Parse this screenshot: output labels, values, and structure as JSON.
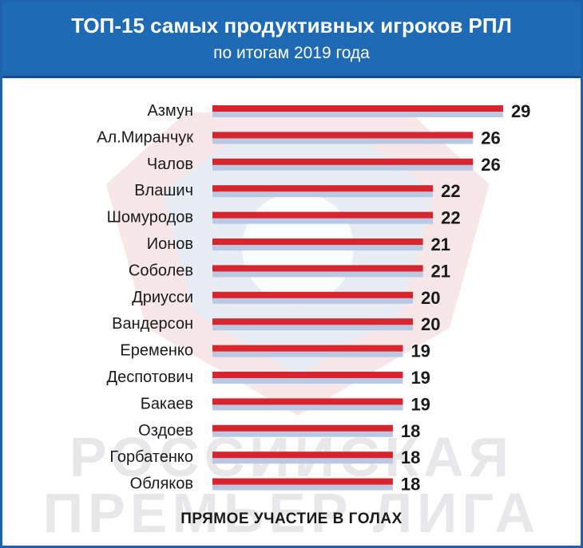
{
  "header": {
    "title": "ТОП-15 самых продуктивных игроков РПЛ",
    "subtitle": "по итогам 2019 года"
  },
  "watermark": {
    "line1": "РОССИЙСКАЯ",
    "line2": "ПРЕМЬЕР ЛИГА"
  },
  "footer": {
    "label": "ПРЯМОЕ УЧАСТИЕ В ГОЛАХ"
  },
  "colors": {
    "header_bg": "#1f6ab5",
    "bar_red": "#d8252d",
    "bar_blue": "#b9c9e3"
  },
  "chart_data": {
    "type": "bar",
    "orientation": "horizontal",
    "categories": [
      "Азмун",
      "Ал.Миранчук",
      "Чалов",
      "Влашич",
      "Шомуродов",
      "Ионов",
      "Соболев",
      "Дриусси",
      "Вандерсон",
      "Еременко",
      "Деспотович",
      "Бакаев",
      "Оздоев",
      "Горбатенко",
      "Обляков"
    ],
    "values": [
      29,
      26,
      26,
      22,
      22,
      21,
      21,
      20,
      20,
      19,
      19,
      19,
      18,
      18,
      18
    ],
    "value_labels": [
      "29",
      "26",
      "26",
      "22",
      "22",
      "21",
      "21",
      "20",
      "20",
      "19",
      "19",
      "19",
      "18",
      "18",
      "18"
    ],
    "xlim": [
      0,
      30
    ],
    "grid": false,
    "legend": "none"
  }
}
